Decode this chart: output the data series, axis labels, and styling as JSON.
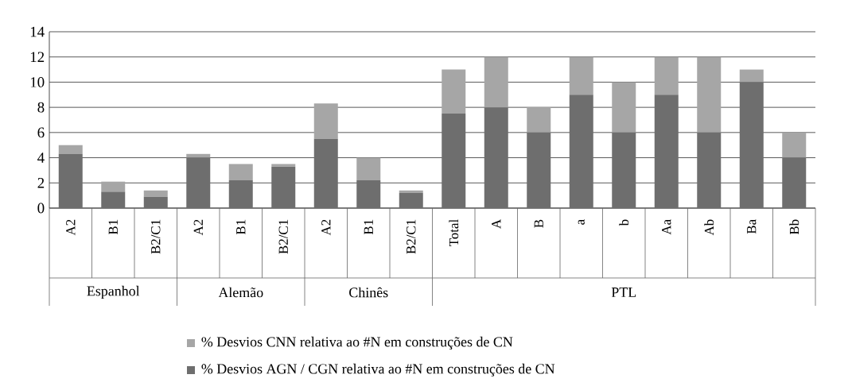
{
  "chart_data": {
    "type": "bar",
    "stacked": true,
    "categories": [
      "A2",
      "B1",
      "B2/C1",
      "A2",
      "B1",
      "B2/C1",
      "A2",
      "B1",
      "B2/C1",
      "Total",
      "A",
      "B",
      "a",
      "b",
      "Aa",
      "Ab",
      "Ba",
      "Bb"
    ],
    "annotations": [
      "Espanhol",
      "Alemão",
      "Chinês",
      "PTL"
    ],
    "series": [
      {
        "name": "% Desvios AGN / CGN relativa ao #N em construções de CN",
        "color": "#6e6e6e",
        "values": [
          4.3,
          1.3,
          0.9,
          4.0,
          2.2,
          3.3,
          5.5,
          2.2,
          1.2,
          7.5,
          8,
          6,
          9,
          6,
          9,
          6,
          10,
          4
        ]
      },
      {
        "name": "% Desvios CNN relativa ao #N em construções de CN",
        "color": "#a6a6a6",
        "values": [
          0.7,
          0.8,
          0.5,
          0.3,
          1.3,
          0.2,
          2.8,
          1.8,
          0.2,
          3.5,
          4,
          2,
          3,
          4,
          3,
          6,
          1,
          2
        ]
      }
    ],
    "ylim": [
      0,
      14
    ],
    "yticks": [
      0,
      2,
      4,
      6,
      8,
      10,
      12,
      14
    ],
    "grid": "y",
    "legend": "bottom"
  }
}
